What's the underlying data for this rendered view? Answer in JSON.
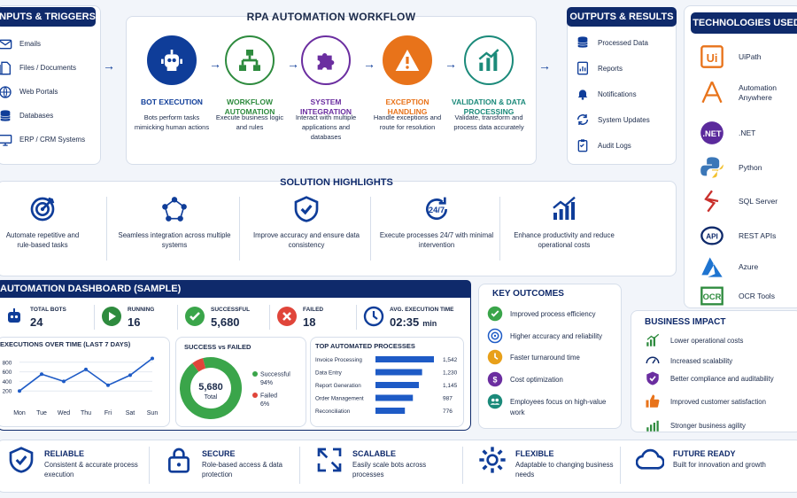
{
  "inputs": {
    "title": "INPUTS & TRIGGERS",
    "items": [
      "Emails",
      "Files / Documents",
      "Web Portals",
      "Databases",
      "ERP / CRM Systems"
    ]
  },
  "workflow": {
    "title": "RPA AUTOMATION WORKFLOW",
    "steps": [
      {
        "title": "BOT EXECUTION",
        "desc": "Bots perform tasks mimicking human actions",
        "color": "#0f3d99"
      },
      {
        "title": "WORKFLOW AUTOMATION",
        "desc": "Execute business logic and rules",
        "color": "#2e8b3e"
      },
      {
        "title": "SYSTEM INTEGRATION",
        "desc": "Interact with multiple applications and databases",
        "color": "#6b2ea0"
      },
      {
        "title": "EXCEPTION HANDLING",
        "desc": "Handle exceptions and route for resolution",
        "color": "#e8731a"
      },
      {
        "title": "VALIDATION & DATA PROCESSING",
        "desc": "Validate, transform and process data accurately",
        "color": "#1b8a7a"
      }
    ]
  },
  "outputs": {
    "title": "OUTPUTS & RESULTS",
    "items": [
      "Processed Data",
      "Reports",
      "Notifications",
      "System Updates",
      "Audit Logs"
    ]
  },
  "tech": {
    "title": "TECHNOLOGIES USED",
    "items": [
      "UiPath",
      "Automation Anywhere",
      ".NET",
      "Python",
      "SQL Server",
      "REST APIs",
      "Azure",
      "OCR Tools"
    ]
  },
  "highlights": {
    "title": "SOLUTION HIGHLIGHTS",
    "items": [
      "Automate repetitive and rule-based tasks",
      "Seamless integration across multiple systems",
      "Improve accuracy and ensure data consistency",
      "Execute processes 24/7 with minimal intervention",
      "Enhance productivity and reduce operational costs"
    ]
  },
  "dashboard": {
    "title": "AUTOMATION DASHBOARD (SAMPLE)",
    "kpis": [
      {
        "label": "TOTAL BOTS",
        "value": "24"
      },
      {
        "label": "RUNNING",
        "value": "16"
      },
      {
        "label": "SUCCESSFUL",
        "value": "5,680"
      },
      {
        "label": "FAILED",
        "value": "18"
      },
      {
        "label": "AVG. EXECUTION TIME",
        "value": "02:35",
        "unit": "min"
      }
    ],
    "line_title": "EXECUTIONS OVER TIME (LAST 7 DAYS)",
    "donut_title": "SUCCESS vs FAILED",
    "donut_center": "5,680",
    "donut_center_label": "Total",
    "donut_legend": [
      {
        "name": "Successful",
        "pct": "94%"
      },
      {
        "name": "Failed",
        "pct": "6%"
      }
    ],
    "bar_title": "TOP AUTOMATED PROCESSES"
  },
  "chart_data": [
    {
      "type": "line",
      "x": [
        "Mon",
        "Tue",
        "Wed",
        "Thu",
        "Fri",
        "Sat",
        "Sun"
      ],
      "values": [
        200,
        550,
        400,
        650,
        320,
        530,
        880
      ],
      "ytick_labels": [
        "800",
        "600",
        "400",
        "200"
      ],
      "ylim": [
        0,
        1000
      ]
    },
    {
      "type": "pie",
      "values": [
        94,
        6
      ],
      "labels": [
        "Successful",
        "Failed"
      ],
      "colors": [
        "#3aa54a",
        "#e0453a"
      ]
    },
    {
      "type": "bar",
      "categories": [
        "Invoice Processing",
        "Data Entry",
        "Report Generation",
        "Order Management",
        "Reconciliation"
      ],
      "values": [
        1542,
        1230,
        1145,
        987,
        776
      ],
      "labels": [
        "1,542",
        "1,230",
        "1,145",
        "987",
        "776"
      ]
    }
  ],
  "outcomes": {
    "title": "KEY OUTCOMES",
    "items": [
      "Improved process efficiency",
      "Higher accuracy and reliability",
      "Faster turnaround time",
      "Cost optimization",
      "Employees focus on high-value work"
    ]
  },
  "impact": {
    "title": "BUSINESS IMPACT",
    "items": [
      "Lower operational costs",
      "Increased scalability",
      "Better compliance and auditability",
      "Improved customer satisfaction",
      "Stronger business agility"
    ]
  },
  "footer": [
    {
      "title": "RELIABLE",
      "desc": "Consistent & accurate process execution"
    },
    {
      "title": "SECURE",
      "desc": "Role-based access & data protection"
    },
    {
      "title": "SCALABLE",
      "desc": "Easily scale bots across processes"
    },
    {
      "title": "FLEXIBLE",
      "desc": "Adaptable to changing business needs"
    },
    {
      "title": "FUTURE READY",
      "desc": "Built for innovation and growth"
    }
  ]
}
